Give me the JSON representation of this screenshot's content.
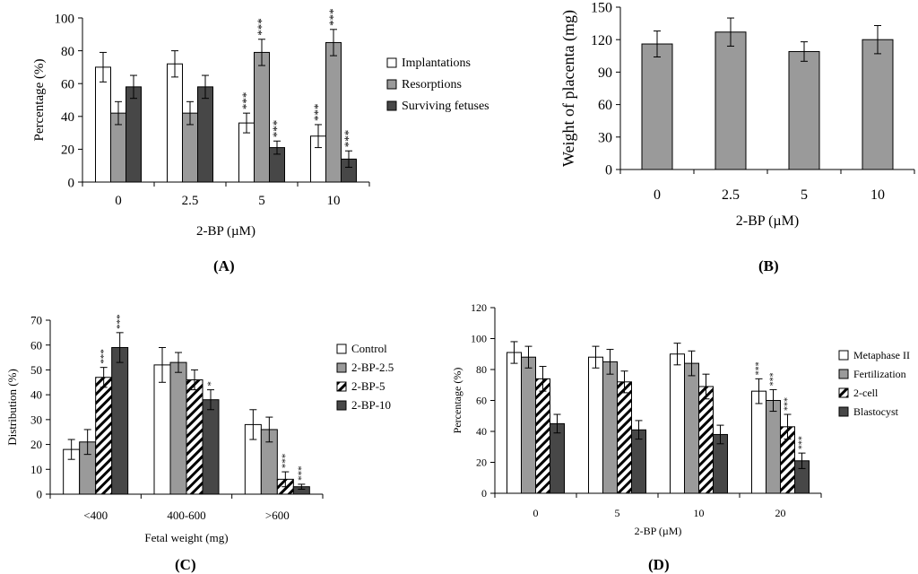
{
  "chart_data": [
    {
      "id": "A",
      "type": "bar",
      "panel_label": "(A)",
      "xlabel": "2-BP (µM)",
      "ylabel": "Percentage (%)",
      "categories": [
        "0",
        "2.5",
        "5",
        "10"
      ],
      "ylim": [
        0,
        100
      ],
      "yticks": [
        0,
        20,
        40,
        60,
        80,
        100
      ],
      "legend_position": "right",
      "series": [
        {
          "name": "Implantations",
          "fill": "white",
          "values": [
            70,
            72,
            36,
            28
          ],
          "errors": [
            9,
            8,
            6,
            7
          ],
          "sig": [
            "",
            "",
            "***",
            "***"
          ]
        },
        {
          "name": "Resorptions",
          "fill": "gray",
          "values": [
            42,
            42,
            79,
            85
          ],
          "errors": [
            7,
            7,
            8,
            8
          ],
          "sig": [
            "",
            "",
            "***",
            "***"
          ]
        },
        {
          "name": "Surviving fetuses",
          "fill": "dark",
          "values": [
            58,
            58,
            21,
            14
          ],
          "errors": [
            7,
            7,
            4,
            5
          ],
          "sig": [
            "",
            "",
            "***",
            "***"
          ]
        }
      ]
    },
    {
      "id": "B",
      "type": "bar",
      "panel_label": "(B)",
      "xlabel": "2-BP (µM)",
      "ylabel": "Weight of placenta (mg)",
      "categories": [
        "0",
        "2.5",
        "5",
        "10"
      ],
      "ylim": [
        0,
        150
      ],
      "yticks": [
        0,
        30,
        60,
        90,
        120,
        150
      ],
      "series": [
        {
          "name": "Weight of placenta",
          "fill": "gray",
          "values": [
            116,
            127,
            109,
            120
          ],
          "errors": [
            12,
            13,
            9,
            13
          ],
          "sig": [
            "",
            "",
            "",
            ""
          ]
        }
      ]
    },
    {
      "id": "C",
      "type": "bar",
      "panel_label": "(C)",
      "xlabel": "Fetal weight (mg)",
      "ylabel": "Distribution (%)",
      "categories": [
        "<400",
        "400-600",
        ">600"
      ],
      "ylim": [
        0,
        70
      ],
      "yticks": [
        0,
        10,
        20,
        30,
        40,
        50,
        60,
        70
      ],
      "legend_position": "right",
      "series": [
        {
          "name": "Control",
          "fill": "white",
          "values": [
            18,
            52,
            28
          ],
          "errors": [
            4,
            7,
            6
          ],
          "sig": [
            "",
            "",
            ""
          ]
        },
        {
          "name": "2-BP-2.5",
          "fill": "gray",
          "values": [
            21,
            53,
            26
          ],
          "errors": [
            5,
            4,
            5
          ],
          "sig": [
            "",
            "",
            ""
          ]
        },
        {
          "name": "2-BP-5",
          "fill": "hatch",
          "values": [
            47,
            46,
            6
          ],
          "errors": [
            4,
            4,
            3
          ],
          "sig": [
            "***",
            "",
            "***"
          ]
        },
        {
          "name": "2-BP-10",
          "fill": "dark",
          "values": [
            59,
            38,
            3
          ],
          "errors": [
            6,
            4,
            1
          ],
          "sig": [
            "***",
            "*",
            "***"
          ]
        }
      ]
    },
    {
      "id": "D",
      "type": "bar",
      "panel_label": "(D)",
      "xlabel": "2-BP (µM)",
      "ylabel": "Percentage (%)",
      "categories": [
        "0",
        "5",
        "10",
        "20"
      ],
      "ylim": [
        0,
        120
      ],
      "yticks": [
        0,
        20,
        40,
        60,
        80,
        100,
        120
      ],
      "legend_position": "right",
      "series": [
        {
          "name": "Metaphase II",
          "fill": "white",
          "values": [
            91,
            88,
            90,
            66
          ],
          "errors": [
            7,
            7,
            7,
            8
          ],
          "sig": [
            "",
            "",
            "",
            "***"
          ]
        },
        {
          "name": "Fertilization",
          "fill": "gray",
          "values": [
            88,
            85,
            84,
            60
          ],
          "errors": [
            7,
            8,
            8,
            7
          ],
          "sig": [
            "",
            "",
            "",
            "***"
          ]
        },
        {
          "name": "2-cell",
          "fill": "hatch",
          "values": [
            74,
            72,
            69,
            43
          ],
          "errors": [
            8,
            7,
            8,
            8
          ],
          "sig": [
            "",
            "",
            "",
            "***"
          ]
        },
        {
          "name": "Blastocyst",
          "fill": "dark",
          "values": [
            45,
            41,
            38,
            21
          ],
          "errors": [
            6,
            6,
            6,
            5
          ],
          "sig": [
            "",
            "",
            "",
            "***"
          ]
        }
      ]
    }
  ]
}
